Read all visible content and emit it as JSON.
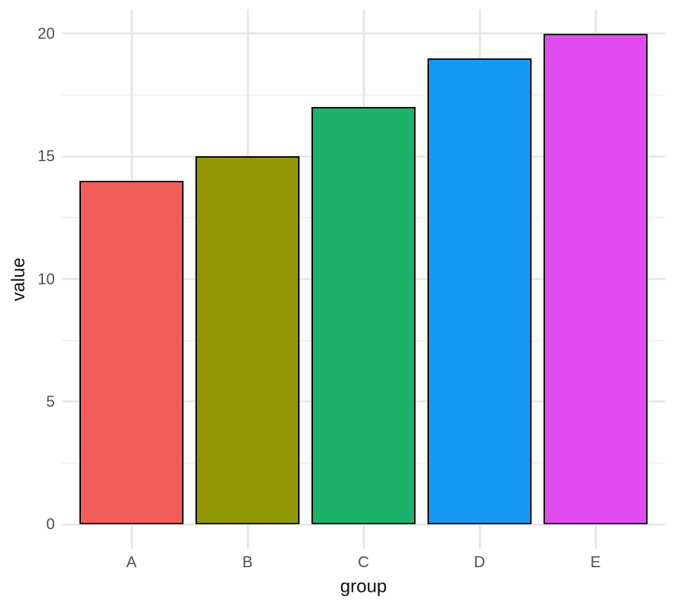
{
  "chart_data": {
    "type": "bar",
    "categories": [
      "A",
      "B",
      "C",
      "D",
      "E"
    ],
    "values": [
      14,
      15,
      17,
      19,
      20
    ],
    "bar_colors": [
      "#F25D5A",
      "#919603",
      "#1CB269",
      "#149AF2",
      "#E04BF0"
    ],
    "bar_border_color": "#000000",
    "title": "",
    "xlabel": "group",
    "ylabel": "value",
    "ylim": [
      0,
      20
    ],
    "yticks": [
      0,
      5,
      10,
      15,
      20
    ],
    "yticks_minor": [
      2.5,
      7.5,
      12.5,
      17.5
    ],
    "grid": true,
    "legend_position": "none",
    "background_color": "#FFFFFF",
    "grid_major_color": "#E7E7E7",
    "grid_minor_color": "#F1F1F1",
    "axis_text_color": "#4D4D4D",
    "axis_title_color": "#111111"
  }
}
